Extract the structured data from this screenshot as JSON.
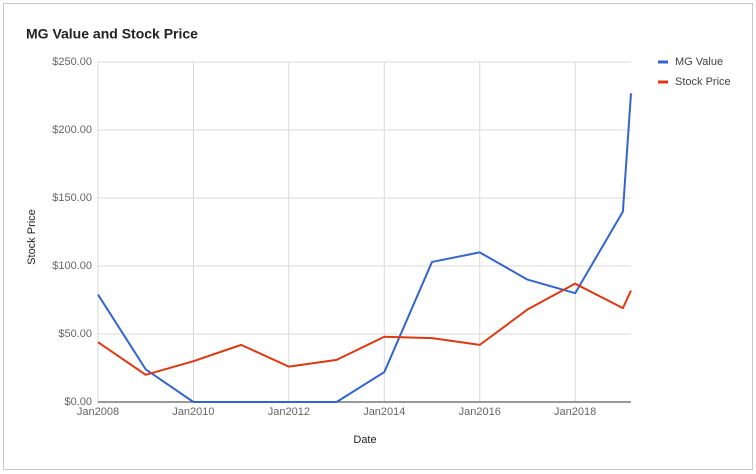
{
  "chart_data": {
    "type": "line",
    "title": "MG Value and Stock Price",
    "x_label": "Date",
    "y_label": "Stock Price",
    "x": [
      2008,
      2009,
      2010,
      2011,
      2012,
      2013,
      2014,
      2015,
      2016,
      2017,
      2018,
      2019,
      2019.17
    ],
    "series": [
      {
        "name": "MG Value",
        "color": "#3366cc",
        "values": [
          79,
          24,
          0,
          0,
          0,
          0,
          22,
          103,
          110,
          90,
          80,
          140,
          227
        ]
      },
      {
        "name": "Stock Price",
        "color": "#dc3912",
        "values": [
          44,
          20,
          30,
          42,
          26,
          31,
          48,
          47,
          42,
          68,
          87,
          69,
          82
        ]
      }
    ],
    "xlim": [
      2008,
      2019.17
    ],
    "xticks": [
      {
        "value": 2008,
        "label": "Jan2008"
      },
      {
        "value": 2010,
        "label": "Jan2010"
      },
      {
        "value": 2012,
        "label": "Jan2012"
      },
      {
        "value": 2014,
        "label": "Jan2014"
      },
      {
        "value": 2016,
        "label": "Jan2016"
      },
      {
        "value": 2018,
        "label": "Jan2018"
      }
    ],
    "ylim": [
      0,
      250
    ],
    "yticks": [
      {
        "value": 0,
        "label": "$0.00"
      },
      {
        "value": 50,
        "label": "$50.00"
      },
      {
        "value": 100,
        "label": "$100.00"
      },
      {
        "value": 150,
        "label": "$150.00"
      },
      {
        "value": 200,
        "label": "$200.00"
      },
      {
        "value": 250,
        "label": "$250.00"
      }
    ],
    "grid": true,
    "legend": "right"
  }
}
